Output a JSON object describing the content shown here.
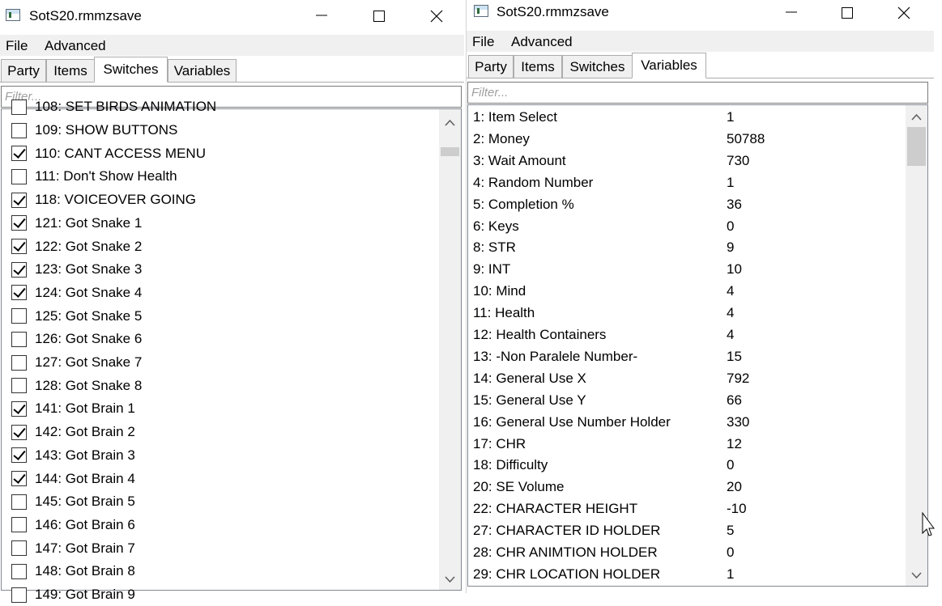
{
  "left_window": {
    "title": "SotS20.rmmzsave",
    "menu": [
      "File",
      "Advanced"
    ],
    "tabs": [
      "Party",
      "Items",
      "Switches",
      "Variables"
    ],
    "active_tab": "Switches",
    "filter_placeholder": "Filter...",
    "partial_top_label": "108: SET BIRDS ANIMATION",
    "switches": [
      {
        "label": "109: SHOW BUTTONS",
        "checked": false
      },
      {
        "label": "110: CANT ACCESS MENU",
        "checked": true
      },
      {
        "label": "111: Don't Show Health",
        "checked": false
      },
      {
        "label": "118: VOICEOVER GOING",
        "checked": true
      },
      {
        "label": "121: Got Snake 1",
        "checked": true
      },
      {
        "label": "122: Got Snake 2",
        "checked": true
      },
      {
        "label": "123: Got Snake 3",
        "checked": true
      },
      {
        "label": "124: Got Snake 4",
        "checked": true
      },
      {
        "label": "125: Got Snake 5",
        "checked": false
      },
      {
        "label": "126: Got Snake 6",
        "checked": false
      },
      {
        "label": "127: Got Snake 7",
        "checked": false
      },
      {
        "label": "128: Got Snake 8",
        "checked": false
      },
      {
        "label": "141: Got Brain 1",
        "checked": true
      },
      {
        "label": "142: Got Brain 2",
        "checked": true
      },
      {
        "label": "143: Got Brain 3",
        "checked": true
      },
      {
        "label": "144: Got Brain 4",
        "checked": true
      },
      {
        "label": "145: Got Brain 5",
        "checked": false
      },
      {
        "label": "146: Got Brain 6",
        "checked": false
      },
      {
        "label": "147: Got Brain 7",
        "checked": false
      },
      {
        "label": "148: Got Brain 8",
        "checked": false
      }
    ],
    "partial_bottom_label": "149: Got Brain 9"
  },
  "right_window": {
    "title": "SotS20.rmmzsave",
    "menu": [
      "File",
      "Advanced"
    ],
    "tabs": [
      "Party",
      "Items",
      "Switches",
      "Variables"
    ],
    "active_tab": "Variables",
    "filter_placeholder": "Filter...",
    "variables": [
      {
        "name": "1: Item Select",
        "value": "1"
      },
      {
        "name": "2: Money",
        "value": "50788"
      },
      {
        "name": "3: Wait Amount",
        "value": "730"
      },
      {
        "name": "4: Random Number",
        "value": "1"
      },
      {
        "name": "5: Completion %",
        "value": "36"
      },
      {
        "name": "6: Keys",
        "value": "0"
      },
      {
        "name": "8: STR",
        "value": "9"
      },
      {
        "name": "9: INT",
        "value": "10"
      },
      {
        "name": "10: Mind",
        "value": "4"
      },
      {
        "name": "11: Health",
        "value": "4"
      },
      {
        "name": "12: Health Containers",
        "value": "4"
      },
      {
        "name": "13: -Non Paralele Number-",
        "value": "15"
      },
      {
        "name": "14: General Use X",
        "value": "792"
      },
      {
        "name": "15: General Use Y",
        "value": "66"
      },
      {
        "name": "16: General Use Number Holder",
        "value": "330"
      },
      {
        "name": "17: CHR",
        "value": "12"
      },
      {
        "name": "18: Difficulty",
        "value": "0"
      },
      {
        "name": "20: SE Volume",
        "value": "20"
      },
      {
        "name": "22: CHARACTER HEIGHT",
        "value": "-10"
      },
      {
        "name": "27: CHARACTER ID HOLDER",
        "value": "5"
      },
      {
        "name": "28: CHR ANIMTION HOLDER",
        "value": "0"
      },
      {
        "name": "29: CHR LOCATION HOLDER",
        "value": "1"
      }
    ]
  },
  "icons": [
    "app-icon",
    "minimize-icon",
    "maximize-icon",
    "close-icon",
    "chevron-up-icon",
    "chevron-down-icon",
    "checkmark-icon",
    "resize-cursor-icon"
  ]
}
